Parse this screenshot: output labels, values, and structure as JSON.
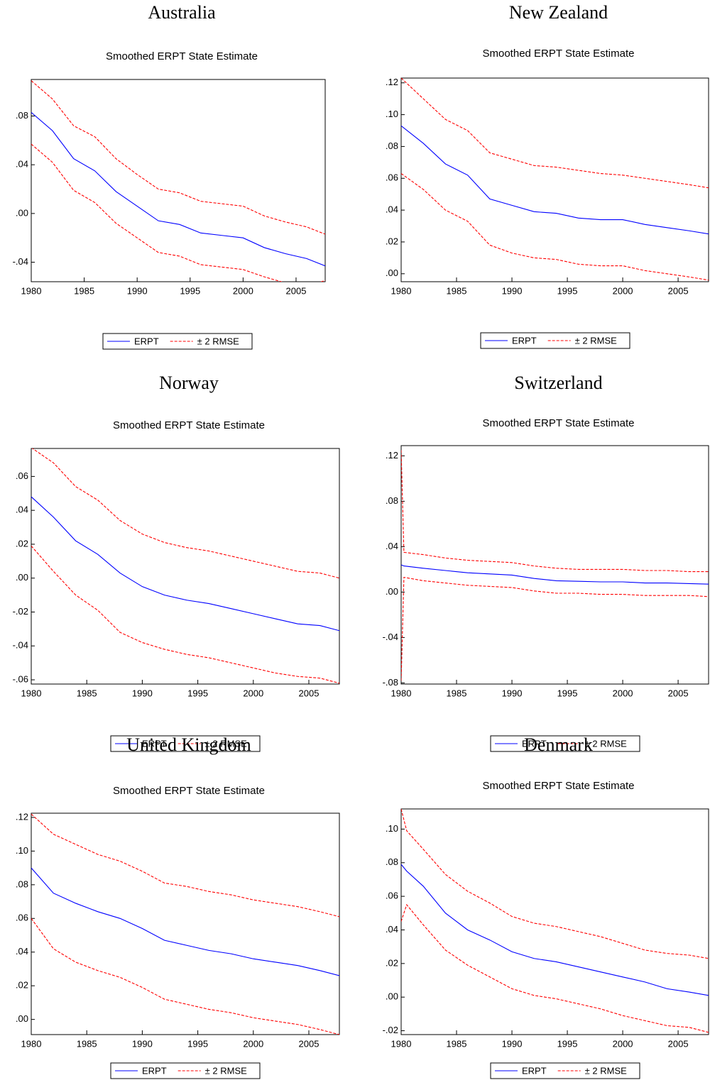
{
  "chart_data": [
    {
      "type": "line",
      "heading": "Australia",
      "title": "Smoothed ERPT State Estimate",
      "x": [
        1980,
        1982,
        1984,
        1986,
        1988,
        1990,
        1992,
        1994,
        1996,
        1998,
        2000,
        2002,
        2004,
        2006,
        2007.75
      ],
      "series": [
        {
          "name": "ERPT",
          "color": "#0000ff",
          "values": [
            0.083,
            0.068,
            0.045,
            0.035,
            0.018,
            0.006,
            -0.006,
            -0.009,
            -0.016,
            -0.018,
            -0.02,
            -0.028,
            -0.033,
            -0.037,
            -0.043
          ]
        },
        {
          "name": "± 2 RMSE",
          "color": "#ff0000",
          "dashed": true,
          "values": [
            0.109,
            0.094,
            0.072,
            0.063,
            0.045,
            0.032,
            0.02,
            0.017,
            0.01,
            0.008,
            0.006,
            -0.002,
            -0.007,
            -0.011,
            -0.017
          ],
          "lower": [
            0.057,
            0.042,
            0.019,
            0.009,
            -0.008,
            -0.02,
            -0.032,
            -0.035,
            -0.042,
            -0.044,
            -0.046,
            -0.052,
            -0.057,
            -0.06,
            -0.055
          ]
        }
      ],
      "xlim": [
        1980,
        2007.75
      ],
      "xticks": [
        1980,
        1985,
        1990,
        1995,
        2000,
        2005
      ],
      "ylim": [
        -0.056,
        0.11
      ],
      "yticks": [
        {
          "value": 0.08,
          "label": ".08"
        },
        {
          "value": 0.04,
          "label": ".04"
        },
        {
          "value": 0,
          "label": ".00"
        },
        {
          "value": -0.04,
          "label": "-.04"
        }
      ]
    },
    {
      "type": "line",
      "heading": "New Zealand",
      "title": "Smoothed ERPT State Estimate",
      "x": [
        1980,
        1982,
        1984,
        1986,
        1988,
        1990,
        1992,
        1994,
        1996,
        1998,
        2000,
        2002,
        2004,
        2006,
        2007.75
      ],
      "series": [
        {
          "name": "ERPT",
          "color": "#0000ff",
          "values": [
            0.093,
            0.082,
            0.069,
            0.062,
            0.047,
            0.043,
            0.039,
            0.038,
            0.035,
            0.034,
            0.034,
            0.031,
            0.029,
            0.027,
            0.025
          ]
        },
        {
          "name": "± 2 RMSE",
          "color": "#ff0000",
          "dashed": true,
          "values": [
            0.123,
            0.11,
            0.097,
            0.09,
            0.076,
            0.072,
            0.068,
            0.067,
            0.065,
            0.063,
            0.062,
            0.06,
            0.058,
            0.056,
            0.054
          ],
          "lower": [
            0.063,
            0.053,
            0.04,
            0.033,
            0.018,
            0.013,
            0.01,
            0.009,
            0.006,
            0.005,
            0.005,
            0.002,
            0.0,
            -0.002,
            -0.004
          ]
        }
      ],
      "xlim": [
        1980,
        2007.75
      ],
      "xticks": [
        1980,
        1985,
        1990,
        1995,
        2000,
        2005
      ],
      "ylim": [
        -0.005,
        0.123
      ],
      "yticks": [
        {
          "value": 0.12,
          "label": ".12"
        },
        {
          "value": 0.1,
          "label": ".10"
        },
        {
          "value": 0.08,
          "label": ".08"
        },
        {
          "value": 0.06,
          "label": ".06"
        },
        {
          "value": 0.04,
          "label": ".04"
        },
        {
          "value": 0.02,
          "label": ".02"
        },
        {
          "value": 0,
          "label": ".00"
        }
      ]
    },
    {
      "type": "line",
      "heading": "Norway",
      "title": "Smoothed ERPT State Estimate",
      "x": [
        1980,
        1982,
        1984,
        1986,
        1988,
        1990,
        1992,
        1994,
        1996,
        1998,
        2000,
        2002,
        2004,
        2006,
        2007.75
      ],
      "series": [
        {
          "name": "ERPT",
          "color": "#0000ff",
          "values": [
            0.048,
            0.036,
            0.022,
            0.014,
            0.003,
            -0.005,
            -0.01,
            -0.013,
            -0.015,
            -0.018,
            -0.021,
            -0.024,
            -0.027,
            -0.028,
            -0.031
          ]
        },
        {
          "name": "± 2 RMSE",
          "color": "#ff0000",
          "dashed": true,
          "values": [
            0.077,
            0.068,
            0.054,
            0.046,
            0.034,
            0.026,
            0.021,
            0.018,
            0.016,
            0.013,
            0.01,
            0.007,
            0.004,
            0.003,
            0.0
          ],
          "lower": [
            0.019,
            0.004,
            -0.01,
            -0.019,
            -0.032,
            -0.038,
            -0.042,
            -0.045,
            -0.047,
            -0.05,
            -0.053,
            -0.056,
            -0.058,
            -0.059,
            -0.062
          ]
        }
      ],
      "xlim": [
        1980,
        2007.75
      ],
      "xticks": [
        1980,
        1985,
        1990,
        1995,
        2000,
        2005
      ],
      "ylim": [
        -0.0625,
        0.0765
      ],
      "yticks": [
        {
          "value": 0.06,
          "label": ".06"
        },
        {
          "value": 0.04,
          "label": ".04"
        },
        {
          "value": 0.02,
          "label": ".02"
        },
        {
          "value": 0,
          "label": ".00"
        },
        {
          "value": -0.02,
          "label": "-.02"
        },
        {
          "value": -0.04,
          "label": "-.04"
        },
        {
          "value": -0.06,
          "label": "-.06"
        }
      ]
    },
    {
      "type": "line",
      "heading": "Switzerland",
      "title": "Smoothed ERPT State Estimate",
      "x": [
        1980,
        1980.25,
        1982,
        1984,
        1986,
        1988,
        1990,
        1992,
        1994,
        1996,
        1998,
        2000,
        2002,
        2004,
        2006,
        2007.75
      ],
      "series": [
        {
          "name": "ERPT",
          "color": "#0000ff",
          "values": [
            0.024,
            0.023,
            0.021,
            0.019,
            0.017,
            0.016,
            0.015,
            0.012,
            0.01,
            0.0095,
            0.009,
            0.009,
            0.008,
            0.008,
            0.0075,
            0.007
          ]
        },
        {
          "name": "± 2 RMSE",
          "color": "#ff0000",
          "dashed": true,
          "values": [
            0.125,
            0.035,
            0.033,
            0.03,
            0.028,
            0.027,
            0.026,
            0.023,
            0.021,
            0.02,
            0.02,
            0.02,
            0.019,
            0.019,
            0.018,
            0.018
          ],
          "lower": [
            -0.078,
            0.013,
            0.01,
            0.008,
            0.006,
            0.005,
            0.004,
            0.001,
            -0.001,
            -0.001,
            -0.002,
            -0.002,
            -0.003,
            -0.003,
            -0.003,
            -0.004
          ]
        }
      ],
      "xlim": [
        1980,
        2007.75
      ],
      "xticks": [
        1980,
        1985,
        1990,
        1995,
        2000,
        2005
      ],
      "ylim": [
        -0.081,
        0.129
      ],
      "yticks": [
        {
          "value": 0.12,
          "label": ".12"
        },
        {
          "value": 0.08,
          "label": ".08"
        },
        {
          "value": 0.04,
          "label": ".04"
        },
        {
          "value": 0,
          "label": ".00"
        },
        {
          "value": -0.04,
          "label": "-.04"
        },
        {
          "value": -0.08,
          "label": "-.08"
        }
      ]
    },
    {
      "type": "line",
      "heading": "United Kingdom",
      "title": "Smoothed ERPT State Estimate",
      "x": [
        1980,
        1982,
        1984,
        1986,
        1988,
        1990,
        1992,
        1994,
        1996,
        1998,
        2000,
        2002,
        2004,
        2006,
        2007.75
      ],
      "series": [
        {
          "name": "ERPT",
          "color": "#0000ff",
          "values": [
            0.09,
            0.075,
            0.069,
            0.064,
            0.06,
            0.054,
            0.047,
            0.044,
            0.041,
            0.039,
            0.036,
            0.034,
            0.032,
            0.029,
            0.026
          ]
        },
        {
          "name": "± 2 RMSE",
          "color": "#ff0000",
          "dashed": true,
          "values": [
            0.122,
            0.11,
            0.104,
            0.098,
            0.094,
            0.088,
            0.081,
            0.079,
            0.076,
            0.074,
            0.071,
            0.069,
            0.067,
            0.064,
            0.061
          ],
          "lower": [
            0.06,
            0.042,
            0.034,
            0.029,
            0.025,
            0.019,
            0.012,
            0.009,
            0.006,
            0.004,
            0.001,
            -0.001,
            -0.003,
            -0.006,
            -0.009
          ]
        }
      ],
      "xlim": [
        1980,
        2007.75
      ],
      "xticks": [
        1980,
        1985,
        1990,
        1995,
        2000,
        2005
      ],
      "ylim": [
        -0.009,
        0.1225
      ],
      "yticks": [
        {
          "value": 0.12,
          "label": ".12"
        },
        {
          "value": 0.1,
          "label": ".10"
        },
        {
          "value": 0.08,
          "label": ".08"
        },
        {
          "value": 0.06,
          "label": ".06"
        },
        {
          "value": 0.04,
          "label": ".04"
        },
        {
          "value": 0.02,
          "label": ".02"
        },
        {
          "value": 0,
          "label": ".00"
        }
      ]
    },
    {
      "type": "line",
      "heading": "Denmark",
      "title": "Smoothed ERPT State Estimate",
      "x": [
        1980,
        1980.5,
        1982,
        1984,
        1986,
        1988,
        1990,
        1992,
        1994,
        1996,
        1998,
        2000,
        2002,
        2004,
        2006,
        2007.75
      ],
      "series": [
        {
          "name": "ERPT",
          "color": "#0000ff",
          "values": [
            0.079,
            0.075,
            0.066,
            0.05,
            0.04,
            0.034,
            0.027,
            0.023,
            0.021,
            0.018,
            0.015,
            0.012,
            0.009,
            0.005,
            0.003,
            0.001
          ]
        },
        {
          "name": "± 2 RMSE",
          "color": "#ff0000",
          "dashed": true,
          "values": [
            0.112,
            0.099,
            0.088,
            0.073,
            0.063,
            0.056,
            0.048,
            0.044,
            0.042,
            0.039,
            0.036,
            0.032,
            0.028,
            0.026,
            0.025,
            0.023
          ],
          "lower": [
            0.045,
            0.055,
            0.043,
            0.028,
            0.019,
            0.012,
            0.005,
            0.001,
            -0.001,
            -0.004,
            -0.007,
            -0.011,
            -0.014,
            -0.017,
            -0.018,
            -0.021
          ]
        }
      ],
      "xlim": [
        1980,
        2007.75
      ],
      "xticks": [
        1980,
        1985,
        1990,
        1995,
        2000,
        2005
      ],
      "ylim": [
        -0.0223,
        0.112
      ],
      "yticks": [
        {
          "value": 0.1,
          "label": ".10"
        },
        {
          "value": 0.08,
          "label": ".08"
        },
        {
          "value": 0.06,
          "label": ".06"
        },
        {
          "value": 0.04,
          "label": ".04"
        },
        {
          "value": 0.02,
          "label": ".02"
        },
        {
          "value": 0,
          "label": ".00"
        },
        {
          "value": -0.02,
          "label": "-.02"
        }
      ]
    }
  ]
}
